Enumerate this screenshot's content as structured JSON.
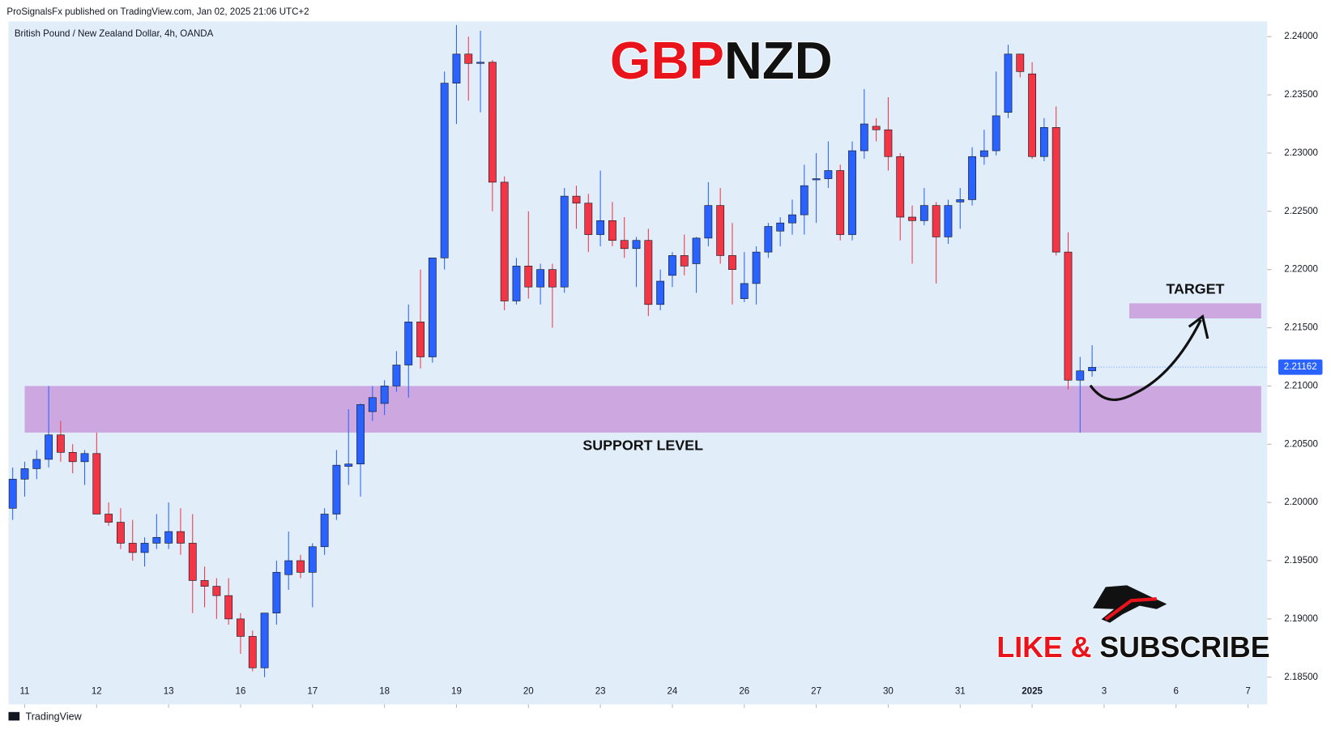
{
  "chart_data": {
    "type": "candlestick",
    "header": "ProSignalsFx published on TradingView.com, Jan 02, 2025 21:06 UTC+2",
    "subtitle": "British Pound / New Zealand Dollar, 4h, OANDA",
    "title_parts": [
      "GBP",
      "NZD"
    ],
    "title_colors": [
      "#e8131b",
      "#111111"
    ],
    "cta_parts": [
      "LIKE &",
      "SUBSCRIBE"
    ],
    "footer": "TradingView",
    "up_color": "#2962ff",
    "down_color": "#f23645",
    "open": [
      2.1995,
      2.202,
      2.2029,
      2.2037,
      2.2058,
      2.2043,
      2.2035,
      2.2042,
      2.199,
      2.1983,
      2.1965,
      2.1957,
      2.1965,
      2.1965,
      2.1975,
      2.1965,
      2.1933,
      2.1928,
      2.192,
      2.19,
      2.1885,
      2.1858,
      2.1905,
      2.1938,
      2.195,
      2.194,
      2.1962,
      2.199,
      2.2031,
      2.2033,
      2.2078,
      2.2085,
      2.21,
      2.2118,
      2.2155,
      2.2125,
      2.221,
      2.236,
      2.2385,
      2.2377,
      2.2378,
      2.2275,
      2.2173,
      2.2203,
      2.2185,
      2.22,
      2.2185,
      2.2263,
      2.2257,
      2.223,
      2.2242,
      2.2225,
      2.2218,
      2.2225,
      2.217,
      2.2195,
      2.2212,
      2.2205,
      2.2227,
      2.2255,
      2.2212,
      2.2175,
      2.2188,
      2.2215,
      2.2233,
      2.224,
      2.2247,
      2.2277,
      2.2278,
      2.2285,
      2.223,
      2.2302,
      2.2323,
      2.232,
      2.2297,
      2.2245,
      2.2242,
      2.2255,
      2.2228,
      2.2258,
      2.226,
      2.2297,
      2.2302,
      2.2335,
      2.2385,
      2.2368,
      2.2297,
      2.2322,
      2.2215,
      2.2105,
      2.2113
    ],
    "high": [
      2.203,
      2.2035,
      2.2045,
      2.21,
      2.207,
      2.205,
      2.2045,
      2.206,
      2.2,
      2.1995,
      2.1985,
      2.197,
      2.199,
      2.2,
      2.1995,
      2.199,
      2.1945,
      2.1935,
      2.1935,
      2.1905,
      2.189,
      2.1905,
      2.195,
      2.1975,
      2.1955,
      2.1965,
      2.1995,
      2.2045,
      2.208,
      2.2085,
      2.21,
      2.2105,
      2.213,
      2.217,
      2.22,
      2.221,
      2.237,
      2.241,
      2.24,
      2.2405,
      2.238,
      2.228,
      2.221,
      2.225,
      2.2205,
      2.2205,
      2.227,
      2.2272,
      2.2265,
      2.2285,
      2.2258,
      2.2245,
      2.2228,
      2.2235,
      2.22,
      2.2215,
      2.223,
      2.2228,
      2.2275,
      2.227,
      2.224,
      2.2215,
      2.222,
      2.224,
      2.2245,
      2.226,
      2.229,
      2.23,
      2.231,
      2.229,
      2.231,
      2.2355,
      2.233,
      2.2348,
      2.23,
      2.2255,
      2.227,
      2.2258,
      2.226,
      2.227,
      2.2305,
      2.232,
      2.237,
      2.2393,
      2.2385,
      2.2378,
      2.233,
      2.234,
      2.2232,
      2.2125,
      2.2135
    ],
    "low": [
      2.1985,
      2.2005,
      2.202,
      2.203,
      2.2035,
      2.2025,
      2.2015,
      2.199,
      2.198,
      2.196,
      2.195,
      2.1945,
      2.196,
      2.196,
      2.1955,
      2.1905,
      2.191,
      2.19,
      2.1895,
      2.187,
      2.1855,
      2.185,
      2.1895,
      2.1925,
      2.1935,
      2.191,
      2.1955,
      2.1985,
      2.2015,
      2.2005,
      2.207,
      2.2075,
      2.2095,
      2.209,
      2.2115,
      2.212,
      2.22,
      2.2325,
      2.2345,
      2.2335,
      2.225,
      2.2165,
      2.217,
      2.2175,
      2.217,
      2.215,
      2.218,
      2.2235,
      2.2215,
      2.222,
      2.222,
      2.221,
      2.2185,
      2.216,
      2.2165,
      2.2185,
      2.2195,
      2.218,
      2.222,
      2.2205,
      2.217,
      2.2172,
      2.217,
      2.221,
      2.222,
      2.223,
      2.223,
      2.224,
      2.227,
      2.2225,
      2.2225,
      2.2295,
      2.231,
      2.2285,
      2.2225,
      2.2205,
      2.2238,
      2.2188,
      2.2222,
      2.2235,
      2.2255,
      2.229,
      2.2298,
      2.233,
      2.2365,
      2.2295,
      2.2293,
      2.2212,
      2.2097,
      2.206,
      2.2108
    ],
    "close": [
      2.202,
      2.2029,
      2.2037,
      2.2058,
      2.2043,
      2.2035,
      2.2042,
      2.199,
      2.1983,
      2.1965,
      2.1957,
      2.1965,
      2.197,
      2.1975,
      2.1965,
      2.1933,
      2.1928,
      2.192,
      2.19,
      2.1885,
      2.1858,
      2.1905,
      2.194,
      2.195,
      2.194,
      2.1962,
      2.199,
      2.2032,
      2.2033,
      2.2084,
      2.209,
      2.21,
      2.2118,
      2.2155,
      2.2125,
      2.221,
      2.236,
      2.2385,
      2.2377,
      2.2378,
      2.2275,
      2.2173,
      2.2203,
      2.2185,
      2.22,
      2.2185,
      2.2263,
      2.2257,
      2.223,
      2.2242,
      2.2225,
      2.2218,
      2.2225,
      2.217,
      2.219,
      2.2212,
      2.2203,
      2.2227,
      2.2255,
      2.2212,
      2.22,
      2.2188,
      2.2215,
      2.2237,
      2.224,
      2.2247,
      2.2272,
      2.2278,
      2.2285,
      2.223,
      2.2302,
      2.2325,
      2.232,
      2.2297,
      2.2245,
      2.2242,
      2.2255,
      2.2228,
      2.2255,
      2.226,
      2.2297,
      2.2302,
      2.2332,
      2.2385,
      2.237,
      2.2297,
      2.2322,
      2.2215,
      2.2105,
      2.2113,
      2.2116
    ],
    "last_price": 2.21162,
    "xlim": [
      -0.35,
      104.6
    ],
    "ylim": [
      2.18266,
      2.24131
    ],
    "xticks": [
      {
        "value": 1,
        "label": "11"
      },
      {
        "value": 7,
        "label": "12"
      },
      {
        "value": 13,
        "label": "13"
      },
      {
        "value": 19,
        "label": "16"
      },
      {
        "value": 25,
        "label": "17"
      },
      {
        "value": 31,
        "label": "18"
      },
      {
        "value": 37,
        "label": "19"
      },
      {
        "value": 43,
        "label": "20"
      },
      {
        "value": 49,
        "label": "23"
      },
      {
        "value": 55,
        "label": "24"
      },
      {
        "value": 61,
        "label": "26"
      },
      {
        "value": 67,
        "label": "27"
      },
      {
        "value": 73,
        "label": "30"
      },
      {
        "value": 79,
        "label": "31"
      },
      {
        "value": 85,
        "label": "2025"
      },
      {
        "value": 91,
        "label": "3"
      },
      {
        "value": 97,
        "label": "6"
      },
      {
        "value": 103,
        "label": "7"
      }
    ],
    "yticks": [
      {
        "value": 2.24,
        "label": "2.24000"
      },
      {
        "value": 2.235,
        "label": "2.23500"
      },
      {
        "value": 2.23,
        "label": "2.23000"
      },
      {
        "value": 2.225,
        "label": "2.22500"
      },
      {
        "value": 2.22,
        "label": "2.22000"
      },
      {
        "value": 2.215,
        "label": "2.21500"
      },
      {
        "value": 2.21,
        "label": "2.21000"
      },
      {
        "value": 2.205,
        "label": "2.20500"
      },
      {
        "value": 2.2,
        "label": "2.20000"
      },
      {
        "value": 2.195,
        "label": "2.19500"
      },
      {
        "value": 2.19,
        "label": "2.19000"
      },
      {
        "value": 2.185,
        "label": "2.18500"
      }
    ],
    "zones": [
      {
        "label": "SUPPORT LEVEL",
        "from": 2.206,
        "to": 2.21,
        "x_start": 1,
        "x_end": 104.1,
        "color": "#cda8e0"
      },
      {
        "label": "TARGET",
        "from": 2.2158,
        "to": 2.2171,
        "x_start": 93.1,
        "x_end": 104.1,
        "color": "#cda8e0"
      }
    ]
  }
}
